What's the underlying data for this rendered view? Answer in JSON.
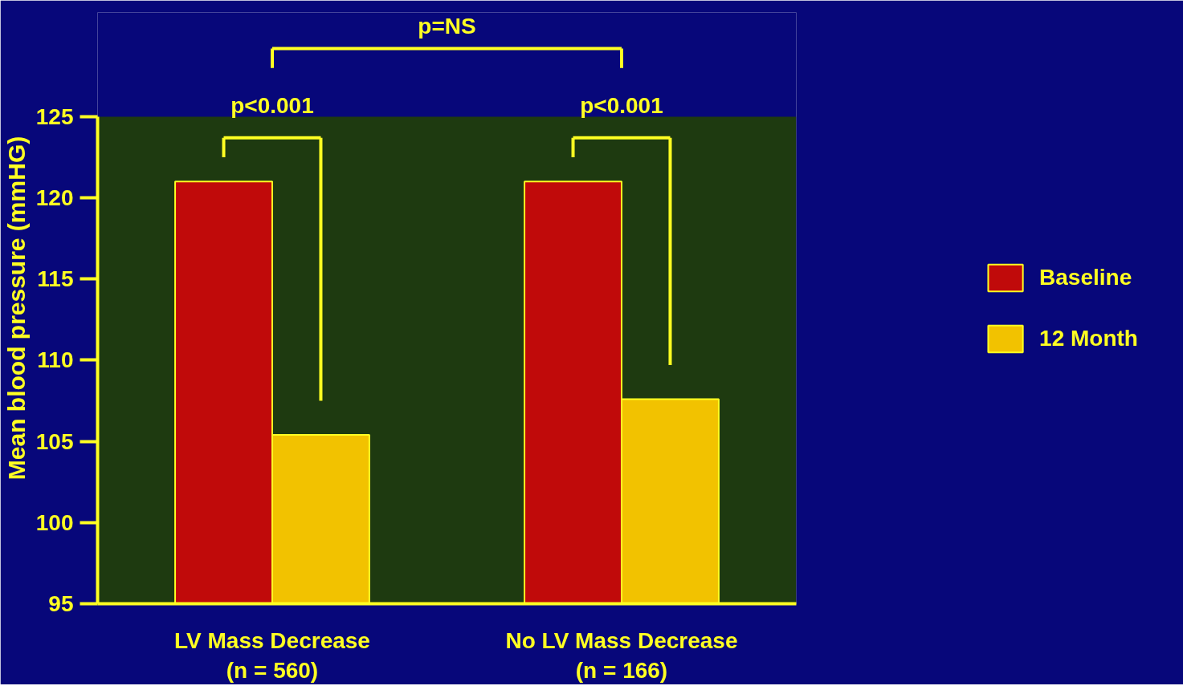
{
  "chart_data": {
    "type": "bar",
    "ylabel": "Mean blood pressure (mmHG)",
    "categories": [
      "LV Mass Decrease\n(n = 560)",
      "No LV Mass Decrease\n(n = 166)"
    ],
    "series": [
      {
        "name": "Baseline",
        "color": "#c00a0a",
        "values": [
          121,
          121
        ]
      },
      {
        "name": "12 Month",
        "color": "#f2c200",
        "values": [
          105.4,
          107.6
        ]
      }
    ],
    "ylim": [
      95,
      125
    ],
    "yticks": [
      95,
      100,
      105,
      110,
      115,
      120,
      125
    ],
    "grid": false,
    "legend": "right",
    "annotations": [
      "p<0.001",
      "p<0.001",
      "p=NS"
    ]
  }
}
